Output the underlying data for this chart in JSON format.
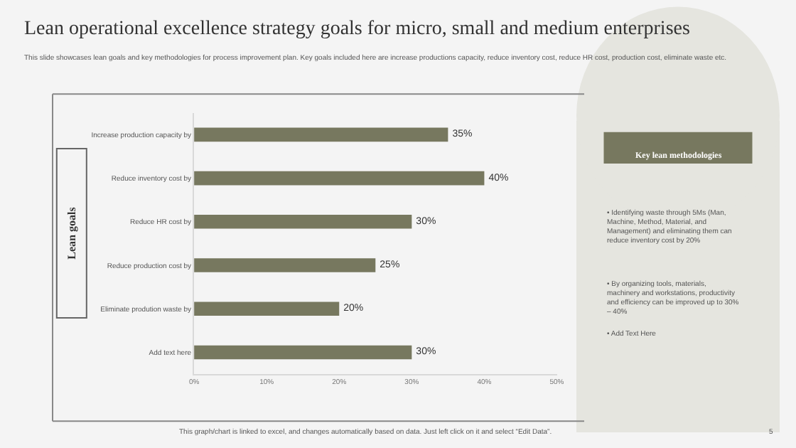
{
  "chart_data": {
    "type": "bar",
    "orientation": "horizontal",
    "title": "Lean operational excellence strategy goals for micro, small and medium enterprises",
    "subtitle": "This slide showcases lean goals and key methodologies for process improvement plan. Key goals included here are increase productions capacity, reduce inventory cost, reduce HR cost, production cost, eliminate waste etc.",
    "ylabel": "Lean goals",
    "categories": [
      "Increase production capacity by",
      "Reduce inventory cost by",
      "Reduce HR cost by",
      "Reduce production cost by",
      "Eliminate prodution waste by",
      "Add text here"
    ],
    "values": [
      35,
      40,
      30,
      25,
      20,
      30
    ],
    "value_labels": [
      "35%",
      "40%",
      "30%",
      "25%",
      "20%",
      "30%"
    ],
    "color": "#77785f",
    "xlim": [
      0,
      50
    ],
    "xticks": [
      {
        "value": 0,
        "label": "0%"
      },
      {
        "value": 10,
        "label": "10%"
      },
      {
        "value": 20,
        "label": "20%"
      },
      {
        "value": 30,
        "label": "30%"
      },
      {
        "value": 40,
        "label": "40%"
      },
      {
        "value": 50,
        "label": "50%"
      }
    ],
    "grid": false,
    "legend": false,
    "annotations": [
      "Key lean methodologies",
      "• Identifying waste through 5Ms (Man, Machine, Method, Material, and Management) and eliminating them can reduce inventory cost by 20%",
      "• By organizing tools, materials, machinery and workstations, productivity and efficiency can be improved up to 30% – 40%",
      "• Add Text Here",
      "This graph/chart is linked to excel, and changes automatically based on data. Just left click on it and select “Edit Data”.",
      "5"
    ]
  }
}
